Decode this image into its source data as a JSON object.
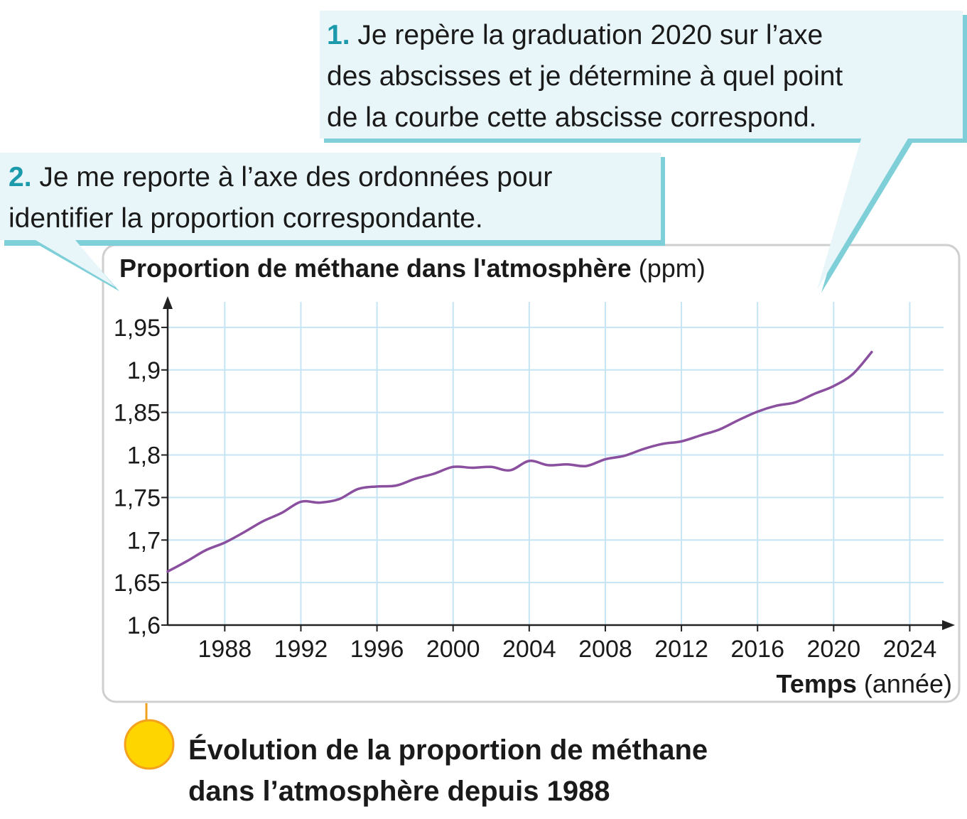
{
  "chart_data": {
    "type": "line",
    "y_title": "Proportion de méthane dans l'atmosphère",
    "y_unit": "(ppm)",
    "x_title": "Temps",
    "x_unit": "(année)",
    "caption": [
      "Évolution de la proportion de méthane",
      "dans l’atmosphère depuis 1988"
    ],
    "annotations": [
      {
        "number": "1.",
        "lines": [
          "Je repère la graduation 2020 sur l’axe",
          "des abscisses et je détermine à quel point",
          "de la courbe cette abscisse correspond."
        ]
      },
      {
        "number": "2.",
        "lines": [
          "Je me reporte à l’axe des ordonnées pour",
          "identifier la proportion correspondante."
        ]
      }
    ],
    "x": [
      1985,
      1986,
      1987,
      1988,
      1989,
      1990,
      1991,
      1992,
      1993,
      1994,
      1995,
      1996,
      1997,
      1998,
      1999,
      2000,
      2001,
      2002,
      2003,
      2004,
      2005,
      2006,
      2007,
      2008,
      2009,
      2010,
      2011,
      2012,
      2013,
      2014,
      2015,
      2016,
      2017,
      2018,
      2019,
      2020,
      2021,
      2022
    ],
    "series": [
      {
        "color": "#8a4f9e",
        "values": [
          1.663,
          1.675,
          1.688,
          1.697,
          1.709,
          1.722,
          1.732,
          1.745,
          1.744,
          1.748,
          1.76,
          1.763,
          1.764,
          1.772,
          1.778,
          1.786,
          1.785,
          1.786,
          1.782,
          1.793,
          1.788,
          1.789,
          1.787,
          1.795,
          1.799,
          1.807,
          1.813,
          1.816,
          1.823,
          1.83,
          1.841,
          1.851,
          1.858,
          1.862,
          1.872,
          1.881,
          1.895,
          1.921
        ]
      }
    ],
    "xlim": [
      1985,
      2026
    ],
    "ylim": [
      1.6,
      1.98
    ],
    "xticks": [
      1988,
      1992,
      1996,
      2000,
      2004,
      2008,
      2012,
      2016,
      2020,
      2024
    ],
    "yticks": [
      {
        "value": 1.6,
        "label": "1,6"
      },
      {
        "value": 1.65,
        "label": "1,65"
      },
      {
        "value": 1.7,
        "label": "1,7"
      },
      {
        "value": 1.75,
        "label": "1,75"
      },
      {
        "value": 1.8,
        "label": "1,8"
      },
      {
        "value": 1.85,
        "label": "1,85"
      },
      {
        "value": 1.9,
        "label": "1,9"
      },
      {
        "value": 1.95,
        "label": "1,95"
      }
    ],
    "grid": true,
    "grid_color": "#c5e4f4"
  }
}
